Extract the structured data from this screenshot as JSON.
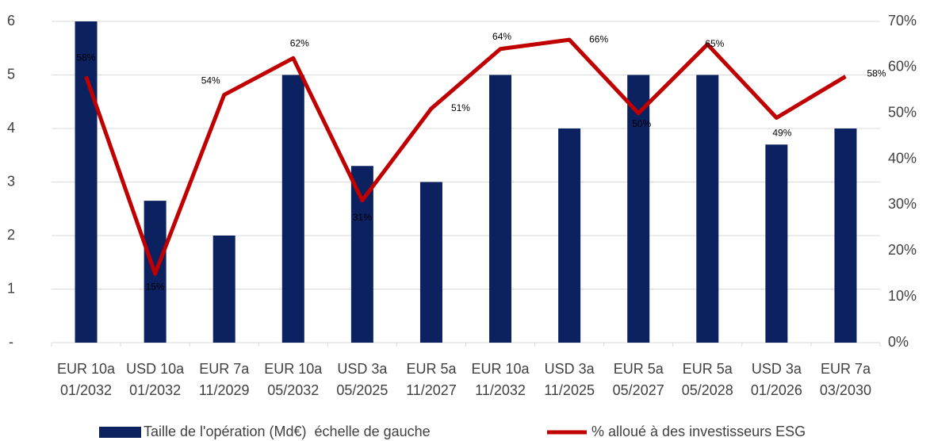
{
  "chart_data": {
    "type": "bar_line",
    "categories": [
      [
        "EUR 10a",
        "01/2032"
      ],
      [
        "USD 10a",
        "01/2032"
      ],
      [
        "EUR 7a",
        "11/2029"
      ],
      [
        "EUR 10a",
        "05/2032"
      ],
      [
        "USD 3a",
        "05/2025"
      ],
      [
        "EUR 5a",
        "11/2027"
      ],
      [
        "EUR 10a",
        "11/2032"
      ],
      [
        "USD 3a",
        "11/2025"
      ],
      [
        "EUR 5a",
        "05/2027"
      ],
      [
        "EUR 5a",
        "05/2028"
      ],
      [
        "USD 3a",
        "01/2026"
      ],
      [
        "EUR 7a",
        "03/2030"
      ]
    ],
    "series": [
      {
        "name": "Taille de l'opération (Md€)  échelle de gauche",
        "type": "bar",
        "color": "#0c2160",
        "values": [
          6,
          2.65,
          2,
          5,
          3.3,
          3,
          5,
          4,
          5,
          5,
          3.7,
          4
        ]
      },
      {
        "name": "% alloué à des investisseurs ESG",
        "type": "line",
        "axis": "y2",
        "color": "#c00000",
        "values": [
          58,
          15,
          54,
          62,
          31,
          51,
          64,
          66,
          50,
          65,
          49,
          58
        ],
        "value_labels": [
          "58%",
          "15%",
          "54%",
          "62%",
          "31%",
          "51%",
          "64%",
          "66%",
          "50%",
          "65%",
          "49%",
          "58%"
        ]
      }
    ],
    "ylim": [
      0,
      6
    ],
    "yticks": [
      {
        "value": 0,
        "label": "-"
      },
      1,
      2,
      3,
      4,
      5,
      6
    ],
    "y2lim": [
      0,
      70
    ],
    "y2ticks": [
      {
        "value": 0,
        "label": "0%"
      },
      {
        "value": 10,
        "label": "10%"
      },
      {
        "value": 20,
        "label": "20%"
      },
      {
        "value": 30,
        "label": "30%"
      },
      {
        "value": 40,
        "label": "40%"
      },
      {
        "value": 50,
        "label": "50%"
      },
      {
        "value": 60,
        "label": "60%"
      },
      {
        "value": 70,
        "label": "70%"
      }
    ],
    "grid": true,
    "legend": "bottom"
  }
}
